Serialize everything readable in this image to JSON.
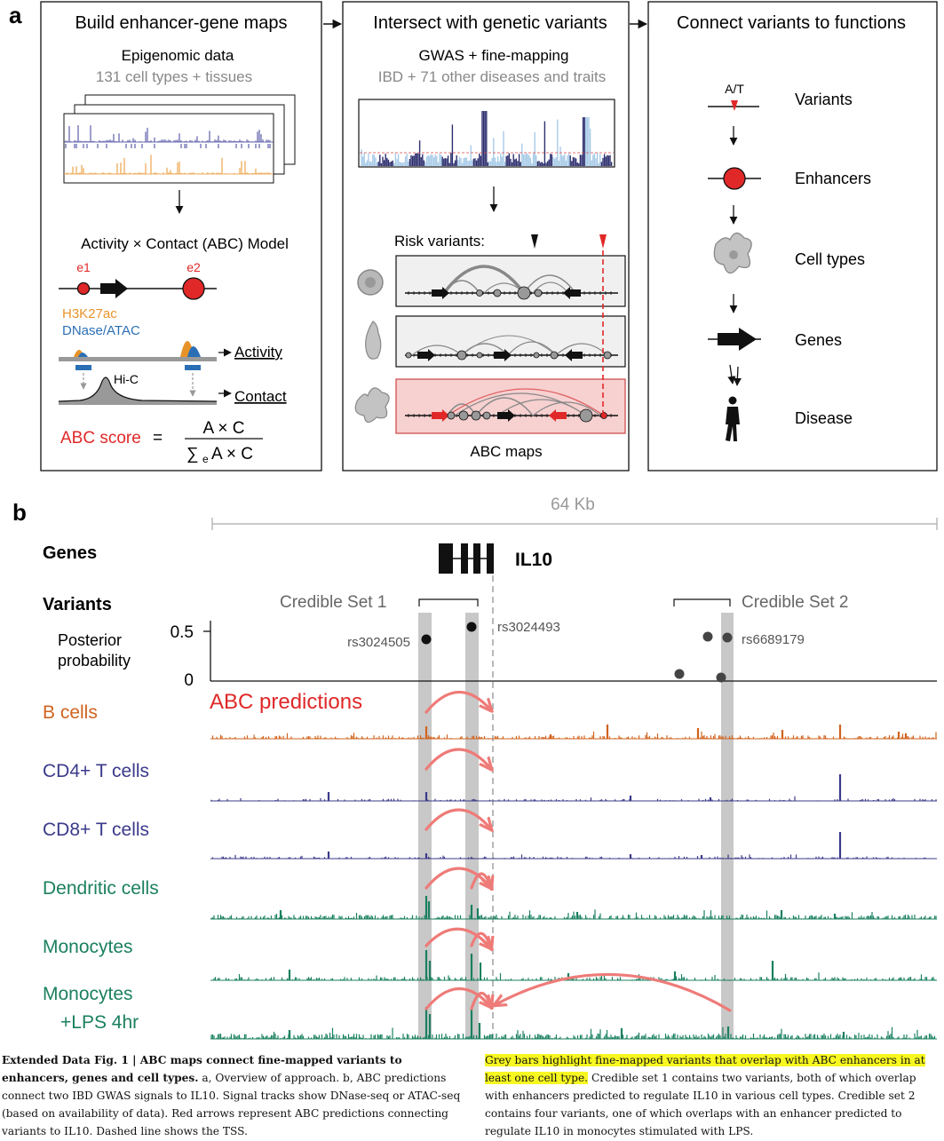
{
  "panel_a": {
    "label": "a",
    "box1": {
      "title": "Build enhancer-gene maps",
      "epi_title": "Epigenomic data",
      "epi_sub": "131 cell types + tissues",
      "model_title": "Activity × Contact (ABC) Model",
      "e1": "e1",
      "e2": "e2",
      "h3k27ac": "H3K27ac",
      "dnase": "DNase/ATAC",
      "activity": "Activity",
      "hic": "Hi-C",
      "contact": "Contact",
      "abc_score": "ABC score",
      "equals": "=",
      "numerator": "A × C",
      "denominator_sigma": "∑",
      "denominator_sub": "e",
      "denominator_rest": "A × C"
    },
    "box2": {
      "title": "Intersect with genetic variants",
      "gwas_title": "GWAS + fine-mapping",
      "gwas_sub": "IBD + 71 other diseases and traits",
      "risk_label": "Risk variants:",
      "maps_label": "ABC maps"
    },
    "box3": {
      "title": "Connect variants to functions",
      "allele": "A/T",
      "items": [
        "Variants",
        "Enhancers",
        "Cell types",
        "Genes",
        "Disease"
      ]
    }
  },
  "panel_b": {
    "label": "b",
    "scale": "64 Kb",
    "genes_label": "Genes",
    "gene_name": "IL10",
    "variants_label": "Variants",
    "credible_set_1": "Credible Set 1",
    "credible_set_2": "Credible Set 2",
    "pp_label_line1": "Posterior",
    "pp_label_line2": "probability",
    "pp_tick_high": "0.5",
    "pp_tick_low": "0",
    "rs_labels": [
      "rs3024505",
      "rs3024493",
      "rs6689179"
    ],
    "abc_predictions": "ABC predictions",
    "tracks": [
      {
        "name": "B cells",
        "color": "#d0631f"
      },
      {
        "name": "CD4+ T cells",
        "color": "#3b3a8a"
      },
      {
        "name": "CD8+ T cells",
        "color": "#3b3a8a"
      },
      {
        "name": "Dendritic cells",
        "color": "#1b8060"
      },
      {
        "name": "Monocytes",
        "color": "#1b8060"
      },
      {
        "name": "Monocytes\n+LPS 4hr",
        "color": "#1b8060"
      }
    ]
  },
  "caption": {
    "title": "Extended Data Fig. 1 | ABC maps connect fine-mapped variants to enhancers, genes and cell types.",
    "left_text": "a, Overview of approach. b, ABC predictions connect two IBD GWAS signals to IL10. Signal tracks show DNase-seq or ATAC-seq (based on availability of data). Red arrows represent ABC predictions connecting variants to IL10. Dashed line shows the TSS.",
    "highlight_text": "Grey bars highlight fine-mapped variants that overlap with ABC enhancers in at least one cell type.",
    "right_text": "Credible set 1 contains two variants, both of which overlap with enhancers predicted to regulate IL10 in various cell types. Credible set 2 contains four variants, one of which overlaps with an enhancer predicted to regulate IL10 in monocytes stimulated with LPS."
  },
  "colors": {
    "red": "#e02828",
    "arrow_pink": "#ee7b78",
    "grey_bar": "#c8c8c8",
    "orange": "#e8932a",
    "blue": "#2a6fb5",
    "highlight": "#f7f722"
  }
}
